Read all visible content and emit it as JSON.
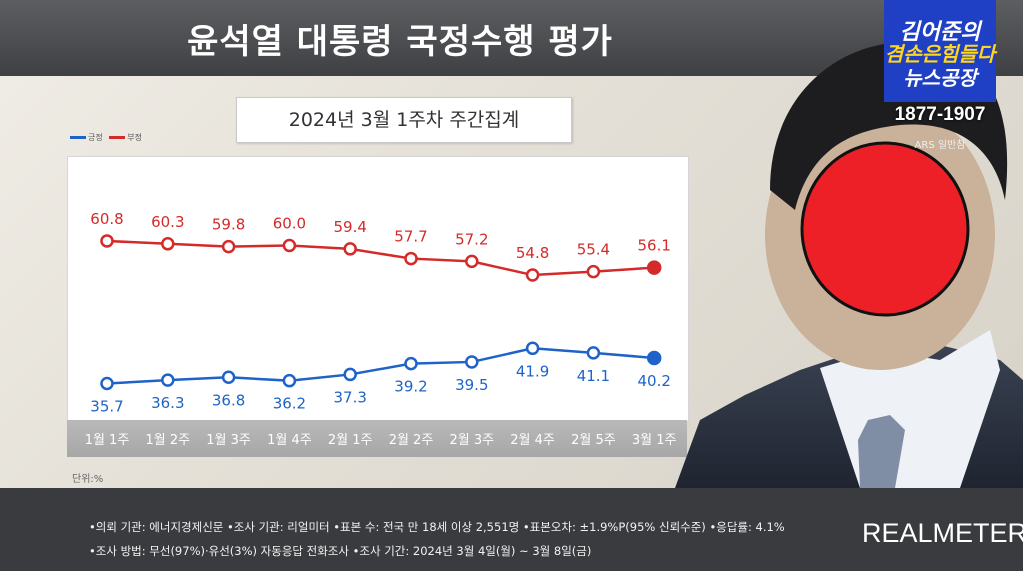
{
  "header": {
    "title": "윤석열 대통령 국정수행 평가"
  },
  "chart_data": {
    "type": "line",
    "title": "2024년 3월 1주차 주간집계",
    "categories": [
      "1월 1주",
      "1월 2주",
      "1월 3주",
      "1월 4주",
      "2월 1주",
      "2월 2주",
      "2월 3주",
      "2월 4주",
      "2월 5주",
      "3월 1주"
    ],
    "series": [
      {
        "name": "부정",
        "color": "#d42a2a",
        "values": [
          60.8,
          60.3,
          59.8,
          60.0,
          59.4,
          57.7,
          57.2,
          54.8,
          55.4,
          56.1
        ]
      },
      {
        "name": "긍정",
        "color": "#1f63c8",
        "values": [
          35.7,
          36.3,
          36.8,
          36.2,
          37.3,
          39.2,
          39.5,
          41.9,
          41.1,
          40.2
        ]
      }
    ],
    "unit_label": "단위:%",
    "ylim": [
      30,
      70
    ]
  },
  "legend": {
    "positive": "긍정",
    "negative": "부정"
  },
  "footer": {
    "line1": "•의뢰 기관: 에너지경제신문 •조사 기관: 리얼미터 •표본 수: 전국 만 18세 이상 2,551명 •표본오차: ±1.9%P(95% 신뢰수준) •응답률: 4.1%",
    "line2": "•조사 방법: 무선(97%)·유선(3%) 자동응답 전화조사 •조사 기간: 2024년 3월 4일(월) ~ 3월 8일(금)",
    "brand": "REALMETER"
  },
  "logo": {
    "line1": "김어준의",
    "line2": "겸손은힘들다",
    "line3": "뉴스공장",
    "phone": "1877-1907",
    "ars": "ARS 일반참"
  }
}
